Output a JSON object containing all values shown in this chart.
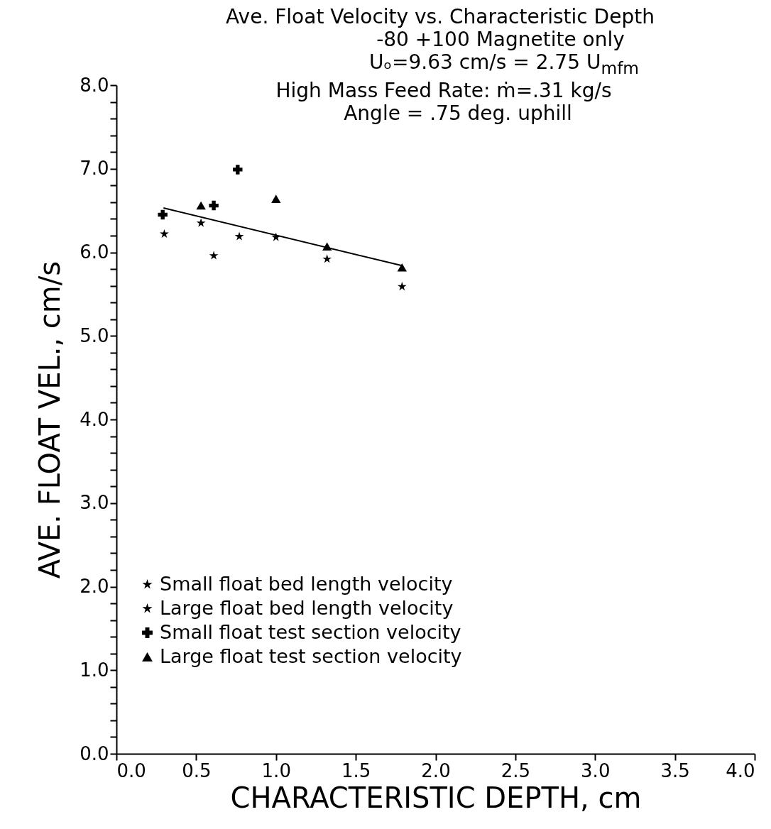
{
  "chart_data": {
    "type": "scatter",
    "title": "Ave. Float Velocity vs. Characteristic Depth",
    "subtitle": [
      "-80 +100 Magnetite only",
      "Uₒ=9.63 cm/s = 2.75 U$_{mfm}$",
      "High Mass Feed Rate: ṁ=.31 kg/s",
      "Angle = .75 deg. uphill"
    ],
    "xlabel": "CHARACTERISTIC DEPTH, cm",
    "ylabel": "AVE. FLOAT VEL., cm/s",
    "xlim": [
      0,
      4
    ],
    "ylim": [
      0,
      8
    ],
    "xticks": [
      {
        "value": 0,
        "label": "0.0"
      },
      0.5,
      {
        "value": 1,
        "label": "1.0"
      },
      1.5,
      {
        "value": 2,
        "label": "2.0"
      },
      2.5,
      {
        "value": 3,
        "label": "3.0"
      },
      3.5,
      {
        "value": 4,
        "label": "4.0"
      }
    ],
    "yticks": [
      {
        "value": 0,
        "label": "0.0"
      },
      {
        "value": 0.2,
        "label": null
      },
      {
        "value": 0.4,
        "label": null
      },
      {
        "value": 0.6,
        "label": null
      },
      {
        "value": 0.8,
        "label": null
      },
      {
        "value": 1,
        "label": "1.0"
      },
      {
        "value": 1.2,
        "label": null
      },
      {
        "value": 1.4,
        "label": null
      },
      {
        "value": 1.6,
        "label": null
      },
      {
        "value": 1.8,
        "label": null
      },
      {
        "value": 2,
        "label": "2.0"
      },
      {
        "value": 2.2,
        "label": null
      },
      {
        "value": 2.4,
        "label": null
      },
      {
        "value": 2.6,
        "label": null
      },
      {
        "value": 2.8,
        "label": null
      },
      {
        "value": 3,
        "label": "3.0"
      },
      {
        "value": 3.2,
        "label": null
      },
      {
        "value": 3.4,
        "label": null
      },
      {
        "value": 3.6,
        "label": null
      },
      {
        "value": 3.8,
        "label": null
      },
      {
        "value": 4,
        "label": "4.0"
      },
      {
        "value": 4.2,
        "label": null
      },
      {
        "value": 4.4,
        "label": null
      },
      {
        "value": 4.6,
        "label": null
      },
      {
        "value": 4.8,
        "label": null
      },
      {
        "value": 5,
        "label": "5.0"
      },
      {
        "value": 5.2,
        "label": null
      },
      {
        "value": 5.4,
        "label": null
      },
      {
        "value": 5.6,
        "label": null
      },
      {
        "value": 5.8,
        "label": null
      },
      {
        "value": 6,
        "label": "6.0"
      },
      {
        "value": 6.2,
        "label": null
      },
      {
        "value": 6.4,
        "label": null
      },
      {
        "value": 6.6,
        "label": null
      },
      {
        "value": 6.8,
        "label": null
      },
      {
        "value": 7,
        "label": "7.0"
      },
      {
        "value": 7.2,
        "label": null
      },
      {
        "value": 7.4,
        "label": null
      },
      {
        "value": 7.6,
        "label": null
      },
      {
        "value": 7.8,
        "label": null
      },
      {
        "value": 8,
        "label": "8.0"
      }
    ],
    "grid": false,
    "legend": "bottom left",
    "series": [
      {
        "name": "Small float bed length velocity",
        "color": "#000000",
        "marker": "star",
        "x": [
          0.3,
          0.61,
          0.77
        ],
        "values": [
          6.22,
          5.96,
          6.19
        ]
      },
      {
        "name": "Large float bed length velocity",
        "color": "#000000",
        "marker": "star",
        "x": [
          0.53,
          1.0,
          1.32,
          1.79
        ],
        "values": [
          6.35,
          6.18,
          5.92,
          5.59
        ]
      },
      {
        "name": "Small float test section velocity",
        "color": "#000000",
        "marker": "cross",
        "x": [
          0.29,
          0.61,
          0.76
        ],
        "values": [
          6.45,
          6.56,
          6.99
        ]
      },
      {
        "name": "Large float test section velocity",
        "color": "#000000",
        "marker": "triangle",
        "x": [
          0.53,
          1.0,
          1.32,
          1.79
        ],
        "values": [
          6.56,
          6.64,
          6.07,
          5.82
        ]
      },
      {
        "type": "line",
        "color": "#000000",
        "marker": "none",
        "line_style": "solid",
        "x": [
          0.295,
          1.79
        ],
        "values": [
          6.53,
          5.84
        ]
      }
    ]
  }
}
